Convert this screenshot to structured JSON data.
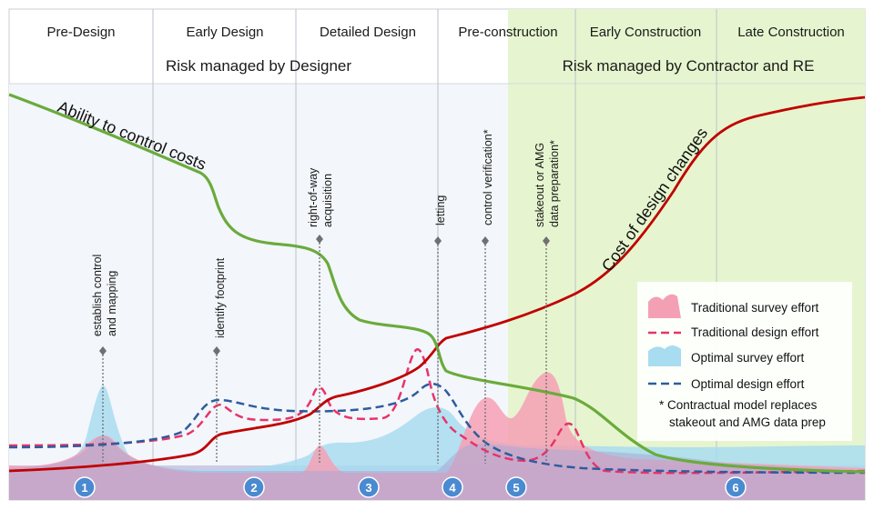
{
  "phases": [
    "Pre-Design",
    "Early Design",
    "Detailed Design",
    "Pre-construction",
    "Early Construction",
    "Late Construction"
  ],
  "risk": {
    "designer": "Risk managed by Designer",
    "contractor": "Risk managed by Contractor and RE"
  },
  "milestones": [
    {
      "id": "establish-control",
      "lines": [
        "establish control",
        "and mapping"
      ]
    },
    {
      "id": "identify-footprint",
      "lines": [
        "identify footprint"
      ]
    },
    {
      "id": "right-of-way",
      "lines": [
        "right-of-way",
        "acquisition"
      ]
    },
    {
      "id": "letting",
      "lines": [
        "letting"
      ]
    },
    {
      "id": "control-verification",
      "lines": [
        "control verification*"
      ]
    },
    {
      "id": "stakeout-amg",
      "lines": [
        "stakeout or AMG",
        "data preparation*"
      ]
    }
  ],
  "curves": {
    "ability": "Ability to control costs",
    "cost": "Cost of design changes"
  },
  "legend": {
    "traditional_survey": "Traditional survey effort",
    "traditional_design": "Traditional design effort",
    "optimal_survey": "Optimal survey effort",
    "optimal_design": "Optimal design effort",
    "note_line1": "* Contractual model replaces",
    "note_line2": "stakeout and AMG data prep"
  },
  "markers": [
    "1",
    "2",
    "3",
    "4",
    "5",
    "6"
  ],
  "colors": {
    "ability_curve": "#6aab3c",
    "cost_curve": "#c00000",
    "traditional_survey": "#f4a0b4",
    "traditional_design": "#e8336a",
    "optimal_survey": "#a8dcf0",
    "optimal_design": "#2e5c9e",
    "contractor_zone": "#e6f5cf",
    "designer_zone": "#f3f6fa",
    "marker": "#4a8ad0"
  }
}
